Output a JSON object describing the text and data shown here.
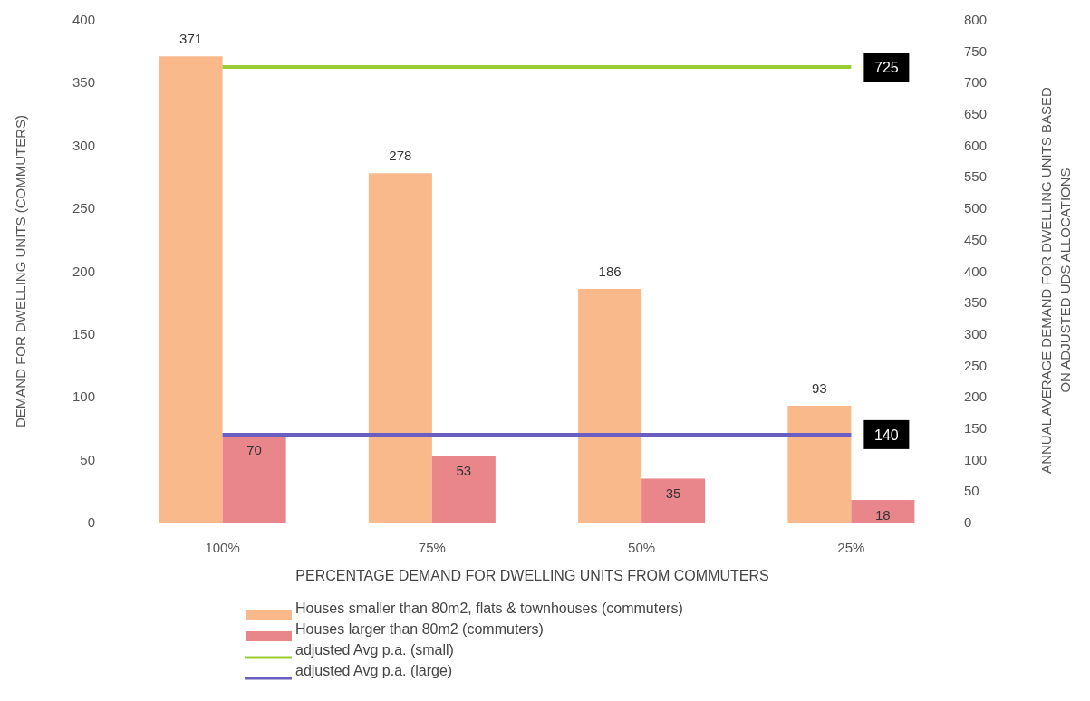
{
  "chart_data": {
    "type": "bar",
    "xlabel": "PERCENTAGE DEMAND FOR DWELLING UNITS FROM COMMUTERS",
    "ylabel": "DEMAND FOR DWELLING UNITS (COMMUTERS)",
    "y2label": "ANNUAL AVERAGE DEMAND FOR DWELLING UNITS  BASED ON ADJUSTED UDS ALLOCATIONS",
    "categories": [
      "100%",
      "75%",
      "50%",
      "25%"
    ],
    "series": [
      {
        "name": "Houses smaller than 80m2, flats & townhouses (commuters)",
        "color": "#f9b98a",
        "values": [
          371,
          278,
          186,
          93
        ]
      },
      {
        "name": "Houses larger than 80m2 (commuters)",
        "color": "#e9868c",
        "values": [
          70,
          53,
          35,
          18
        ]
      },
      {
        "type": "line",
        "axis": "y2",
        "name": "adjusted Avg p.a. (small)",
        "color": "#9acd32",
        "values": [
          725,
          725,
          725,
          725
        ],
        "value_labels": [
          null,
          null,
          null,
          "725"
        ]
      },
      {
        "type": "line",
        "axis": "y2",
        "name": "adjusted Avg p.a. (large)",
        "color": "#6a5fc1",
        "values": [
          140,
          140,
          140,
          140
        ],
        "value_labels": [
          null,
          null,
          null,
          "140"
        ]
      }
    ],
    "data_labels": true,
    "ylim": [
      0,
      400
    ],
    "yticks": [
      0,
      50,
      100,
      150,
      200,
      250,
      300,
      350,
      400
    ],
    "y2lim": [
      0,
      800
    ],
    "y2ticks": [
      0,
      50,
      100,
      150,
      200,
      250,
      300,
      350,
      400,
      450,
      500,
      550,
      600,
      650,
      700,
      750,
      800
    ],
    "grid": false,
    "legend": "bottom"
  }
}
